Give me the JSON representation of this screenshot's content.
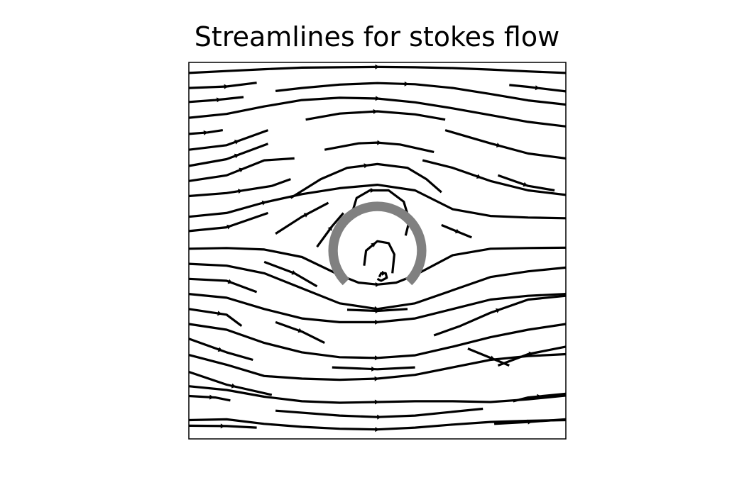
{
  "chart_data": {
    "type": "streamplot",
    "title": "Streamlines for stokes flow",
    "axes_visible": false,
    "grid": false,
    "aspect": "equal",
    "xlim": [
      0,
      1
    ],
    "ylim": [
      0,
      1
    ],
    "line_color": "#000000",
    "obstacle": {
      "shape": "arc",
      "center": [
        0.5,
        0.5
      ],
      "inner_radius": 0.105,
      "outer_radius": 0.13,
      "gap_degrees": 45,
      "gap_direction": "bottom",
      "color": "#808080"
    },
    "streamlines": [
      {
        "points": [
          [
            0,
            0.972
          ],
          [
            0.1,
            0.977
          ],
          [
            0.2,
            0.982
          ],
          [
            0.3,
            0.986
          ],
          [
            0.4,
            0.987
          ],
          [
            0.5,
            0.988
          ],
          [
            0.6,
            0.987
          ],
          [
            0.7,
            0.985
          ],
          [
            0.8,
            0.981
          ],
          [
            0.9,
            0.976
          ],
          [
            1,
            0.972
          ]
        ],
        "arrow": 0.5
      },
      {
        "points": [
          [
            0,
            0.932
          ],
          [
            0.1,
            0.936
          ],
          [
            0.18,
            0.946
          ]
        ],
        "arrow": 0.55
      },
      {
        "points": [
          [
            0.23,
            0.924
          ],
          [
            0.3,
            0.932
          ],
          [
            0.4,
            0.941
          ],
          [
            0.5,
            0.945
          ],
          [
            0.6,
            0.942
          ],
          [
            0.7,
            0.932
          ],
          [
            0.8,
            0.916
          ],
          [
            0.9,
            0.899
          ],
          [
            1,
            0.888
          ]
        ],
        "arrow": 0.45
      },
      {
        "points": [
          [
            0.85,
            0.94
          ],
          [
            0.9,
            0.935
          ],
          [
            1,
            0.923
          ]
        ],
        "arrow": 0.5
      },
      {
        "points": [
          [
            0,
            0.895
          ],
          [
            0.07,
            0.9
          ],
          [
            0.145,
            0.908
          ]
        ],
        "arrow": 0.55
      },
      {
        "points": [
          [
            0,
            0.853
          ],
          [
            0.1,
            0.863
          ],
          [
            0.2,
            0.883
          ],
          [
            0.3,
            0.9
          ],
          [
            0.4,
            0.906
          ],
          [
            0.5,
            0.904
          ],
          [
            0.6,
            0.894
          ],
          [
            0.7,
            0.878
          ],
          [
            0.8,
            0.86
          ],
          [
            0.9,
            0.842
          ],
          [
            1,
            0.83
          ]
        ],
        "arrow": 0.5
      },
      {
        "points": [
          [
            0.31,
            0.848
          ],
          [
            0.4,
            0.864
          ],
          [
            0.5,
            0.87
          ],
          [
            0.6,
            0.862
          ],
          [
            0.68,
            0.848
          ]
        ],
        "arrow": 0.5
      },
      {
        "points": [
          [
            0,
            0.81
          ],
          [
            0.05,
            0.814
          ],
          [
            0.09,
            0.82
          ]
        ],
        "arrow": 0.5
      },
      {
        "points": [
          [
            0,
            0.768
          ],
          [
            0.1,
            0.78
          ],
          [
            0.21,
            0.82
          ]
        ],
        "arrow": 0.6
      },
      {
        "points": [
          [
            0.68,
            0.82
          ],
          [
            0.8,
            0.785
          ],
          [
            0.9,
            0.758
          ],
          [
            1,
            0.745
          ]
        ],
        "arrow": 0.45
      },
      {
        "points": [
          [
            0,
            0.725
          ],
          [
            0.1,
            0.743
          ],
          [
            0.21,
            0.784
          ]
        ],
        "arrow": 0.6
      },
      {
        "points": [
          [
            0.36,
            0.768
          ],
          [
            0.45,
            0.785
          ],
          [
            0.5,
            0.787
          ],
          [
            0.56,
            0.782
          ],
          [
            0.65,
            0.762
          ]
        ],
        "arrow": 0.5
      },
      {
        "points": [
          [
            0,
            0.685
          ],
          [
            0.1,
            0.7
          ],
          [
            0.2,
            0.74
          ],
          [
            0.28,
            0.745
          ]
        ],
        "arrow": 0.5
      },
      {
        "points": [
          [
            0.62,
            0.74
          ],
          [
            0.7,
            0.72
          ],
          [
            0.8,
            0.685
          ],
          [
            0.9,
            0.66
          ],
          [
            1,
            0.648
          ]
        ],
        "arrow": 0.4
      },
      {
        "points": [
          [
            0.27,
            0.64
          ],
          [
            0.35,
            0.69
          ],
          [
            0.42,
            0.72
          ],
          [
            0.5,
            0.73
          ],
          [
            0.58,
            0.72
          ],
          [
            0.63,
            0.69
          ],
          [
            0.67,
            0.655
          ]
        ],
        "arrow": 0.5
      },
      {
        "points": [
          [
            0,
            0.645
          ],
          [
            0.1,
            0.653
          ],
          [
            0.22,
            0.672
          ],
          [
            0.27,
            0.69
          ]
        ],
        "arrow": 0.5
      },
      {
        "points": [
          [
            0.82,
            0.7
          ],
          [
            0.9,
            0.672
          ],
          [
            0.97,
            0.66
          ]
        ],
        "arrow": 0.5
      },
      {
        "points": [
          [
            0,
            0.59
          ],
          [
            0.1,
            0.6
          ],
          [
            0.2,
            0.628
          ],
          [
            0.3,
            0.65
          ],
          [
            0.4,
            0.666
          ],
          [
            0.5,
            0.675
          ],
          [
            0.6,
            0.66
          ],
          [
            0.7,
            0.61
          ],
          [
            0.8,
            0.592
          ],
          [
            0.9,
            0.588
          ],
          [
            1,
            0.586
          ]
        ],
        "arrow": 0.2
      },
      {
        "points": [
          [
            0,
            0.552
          ],
          [
            0.1,
            0.562
          ],
          [
            0.21,
            0.6
          ]
        ],
        "arrow": 0.5
      },
      {
        "points": [
          [
            0.67,
            0.568
          ],
          [
            0.75,
            0.535
          ]
        ],
        "arrow": 0.55
      },
      {
        "points": [
          [
            0.23,
            0.545
          ],
          [
            0.3,
            0.59
          ],
          [
            0.37,
            0.627
          ]
        ],
        "arrow": 0.6
      },
      {
        "points": [
          [
            0.34,
            0.51
          ],
          [
            0.38,
            0.565
          ],
          [
            0.41,
            0.6
          ]
        ],
        "arrow": 0.55
      },
      {
        "points": [
          [
            0,
            0.505
          ],
          [
            0.1,
            0.507
          ],
          [
            0.2,
            0.503
          ],
          [
            0.3,
            0.483
          ],
          [
            0.4,
            0.435
          ],
          [
            0.45,
            0.415
          ],
          [
            0.5,
            0.41
          ],
          [
            0.55,
            0.415
          ],
          [
            0.6,
            0.435
          ],
          [
            0.7,
            0.488
          ],
          [
            0.8,
            0.505
          ],
          [
            0.9,
            0.507
          ],
          [
            1,
            0.508
          ]
        ],
        "arrow": 0.5
      },
      {
        "points": [
          [
            0.2,
            0.47
          ],
          [
            0.28,
            0.44
          ],
          [
            0.34,
            0.405
          ]
        ],
        "arrow": 0.55
      },
      {
        "points": [
          [
            0,
            0.465
          ],
          [
            0.1,
            0.46
          ],
          [
            0.2,
            0.44
          ],
          [
            0.3,
            0.4
          ],
          [
            0.4,
            0.36
          ],
          [
            0.5,
            0.345
          ],
          [
            0.6,
            0.36
          ],
          [
            0.7,
            0.395
          ],
          [
            0.8,
            0.43
          ],
          [
            0.9,
            0.445
          ],
          [
            1,
            0.455
          ]
        ],
        "arrow": 0.5
      },
      {
        "points": [
          [
            0.42,
            0.343
          ],
          [
            0.5,
            0.34
          ],
          [
            0.58,
            0.345
          ]
        ],
        "arrow": 0.5
      },
      {
        "points": [
          [
            0,
            0.425
          ],
          [
            0.1,
            0.42
          ],
          [
            0.18,
            0.39
          ]
        ],
        "arrow": 0.6
      },
      {
        "points": [
          [
            0,
            0.385
          ],
          [
            0.1,
            0.375
          ],
          [
            0.2,
            0.345
          ],
          [
            0.3,
            0.32
          ],
          [
            0.4,
            0.31
          ],
          [
            0.5,
            0.31
          ],
          [
            0.6,
            0.32
          ],
          [
            0.7,
            0.345
          ],
          [
            0.8,
            0.37
          ],
          [
            0.9,
            0.38
          ],
          [
            1,
            0.385
          ]
        ],
        "arrow": 0.5
      },
      {
        "points": [
          [
            0,
            0.345
          ],
          [
            0.1,
            0.33
          ],
          [
            0.14,
            0.3
          ]
        ],
        "arrow": 0.55
      },
      {
        "points": [
          [
            0.23,
            0.31
          ],
          [
            0.3,
            0.285
          ],
          [
            0.36,
            0.255
          ]
        ],
        "arrow": 0.5
      },
      {
        "points": [
          [
            0.65,
            0.275
          ],
          [
            0.72,
            0.3
          ],
          [
            0.8,
            0.335
          ],
          [
            0.9,
            0.37
          ],
          [
            1,
            0.38
          ]
        ],
        "arrow": 0.5
      },
      {
        "points": [
          [
            0,
            0.305
          ],
          [
            0.1,
            0.29
          ],
          [
            0.2,
            0.255
          ],
          [
            0.3,
            0.23
          ],
          [
            0.4,
            0.217
          ],
          [
            0.5,
            0.215
          ],
          [
            0.6,
            0.222
          ],
          [
            0.7,
            0.245
          ],
          [
            0.8,
            0.27
          ],
          [
            0.9,
            0.29
          ],
          [
            1,
            0.305
          ]
        ],
        "arrow": 0.5
      },
      {
        "points": [
          [
            0.74,
            0.24
          ],
          [
            0.85,
            0.195
          ]
        ],
        "arrow": 0.6
      },
      {
        "points": [
          [
            0,
            0.266
          ],
          [
            0.1,
            0.23
          ],
          [
            0.17,
            0.21
          ]
        ],
        "arrow": 0.5
      },
      {
        "points": [
          [
            0.38,
            0.19
          ],
          [
            0.5,
            0.185
          ],
          [
            0.6,
            0.19
          ]
        ],
        "arrow": 0.5
      },
      {
        "points": [
          [
            0.82,
            0.195
          ],
          [
            0.9,
            0.225
          ],
          [
            1,
            0.245
          ]
        ],
        "arrow": 0.5
      },
      {
        "points": [
          [
            0,
            0.223
          ],
          [
            0.1,
            0.197
          ],
          [
            0.2,
            0.167
          ],
          [
            0.3,
            0.16
          ],
          [
            0.4,
            0.157
          ],
          [
            0.5,
            0.16
          ],
          [
            0.6,
            0.17
          ],
          [
            0.7,
            0.19
          ],
          [
            0.8,
            0.21
          ],
          [
            0.9,
            0.22
          ],
          [
            1,
            0.225
          ]
        ],
        "arrow": 0.5
      },
      {
        "points": [
          [
            0,
            0.178
          ],
          [
            0.1,
            0.144
          ],
          [
            0.22,
            0.117
          ]
        ],
        "arrow": 0.55
      },
      {
        "points": [
          [
            0,
            0.114
          ],
          [
            0.07,
            0.11
          ],
          [
            0.11,
            0.102
          ]
        ],
        "arrow": 0.55
      },
      {
        "points": [
          [
            0,
            0.14
          ],
          [
            0.1,
            0.13
          ],
          [
            0.2,
            0.112
          ],
          [
            0.3,
            0.1
          ],
          [
            0.4,
            0.096
          ],
          [
            0.5,
            0.098
          ],
          [
            0.6,
            0.1
          ],
          [
            0.7,
            0.1
          ],
          [
            0.8,
            0.098
          ],
          [
            0.9,
            0.105
          ],
          [
            1,
            0.115
          ]
        ],
        "arrow": 0.5
      },
      {
        "points": [
          [
            0.86,
            0.1
          ],
          [
            0.9,
            0.11
          ],
          [
            1,
            0.12
          ]
        ],
        "arrow": 0.5
      },
      {
        "points": [
          [
            0.23,
            0.075
          ],
          [
            0.4,
            0.062
          ],
          [
            0.5,
            0.058
          ],
          [
            0.6,
            0.062
          ],
          [
            0.78,
            0.08
          ]
        ],
        "arrow": 0.5
      },
      {
        "points": [
          [
            0,
            0.05
          ],
          [
            0.1,
            0.052
          ],
          [
            0.2,
            0.04
          ],
          [
            0.3,
            0.032
          ],
          [
            0.4,
            0.027
          ],
          [
            0.5,
            0.025
          ],
          [
            0.6,
            0.03
          ],
          [
            0.7,
            0.038
          ],
          [
            0.8,
            0.045
          ],
          [
            0.9,
            0.048
          ],
          [
            1,
            0.05
          ]
        ],
        "arrow": 0.5
      },
      {
        "points": [
          [
            0,
            0.035
          ],
          [
            0.1,
            0.034
          ],
          [
            0.18,
            0.03
          ]
        ],
        "arrow": 0.5
      },
      {
        "points": [
          [
            0.81,
            0.04
          ],
          [
            0.9,
            0.045
          ],
          [
            1,
            0.052
          ]
        ],
        "arrow": 0.5
      },
      {
        "points": [
          [
            0.43,
            0.59
          ],
          [
            0.445,
            0.64
          ],
          [
            0.48,
            0.66
          ],
          [
            0.53,
            0.66
          ],
          [
            0.57,
            0.63
          ],
          [
            0.585,
            0.58
          ],
          [
            0.575,
            0.54
          ]
        ],
        "arrow": 0.35
      },
      {
        "points": [
          [
            0.465,
            0.46
          ],
          [
            0.47,
            0.5
          ],
          [
            0.5,
            0.525
          ],
          [
            0.53,
            0.52
          ],
          [
            0.545,
            0.49
          ],
          [
            0.54,
            0.44
          ]
        ],
        "arrow": 0.35
      },
      {
        "points": [
          [
            0.505,
            0.43
          ],
          [
            0.51,
            0.44
          ],
          [
            0.522,
            0.44
          ],
          [
            0.525,
            0.428
          ],
          [
            0.51,
            0.42
          ],
          [
            0.5,
            0.425
          ]
        ],
        "arrow": 0.3
      }
    ]
  }
}
